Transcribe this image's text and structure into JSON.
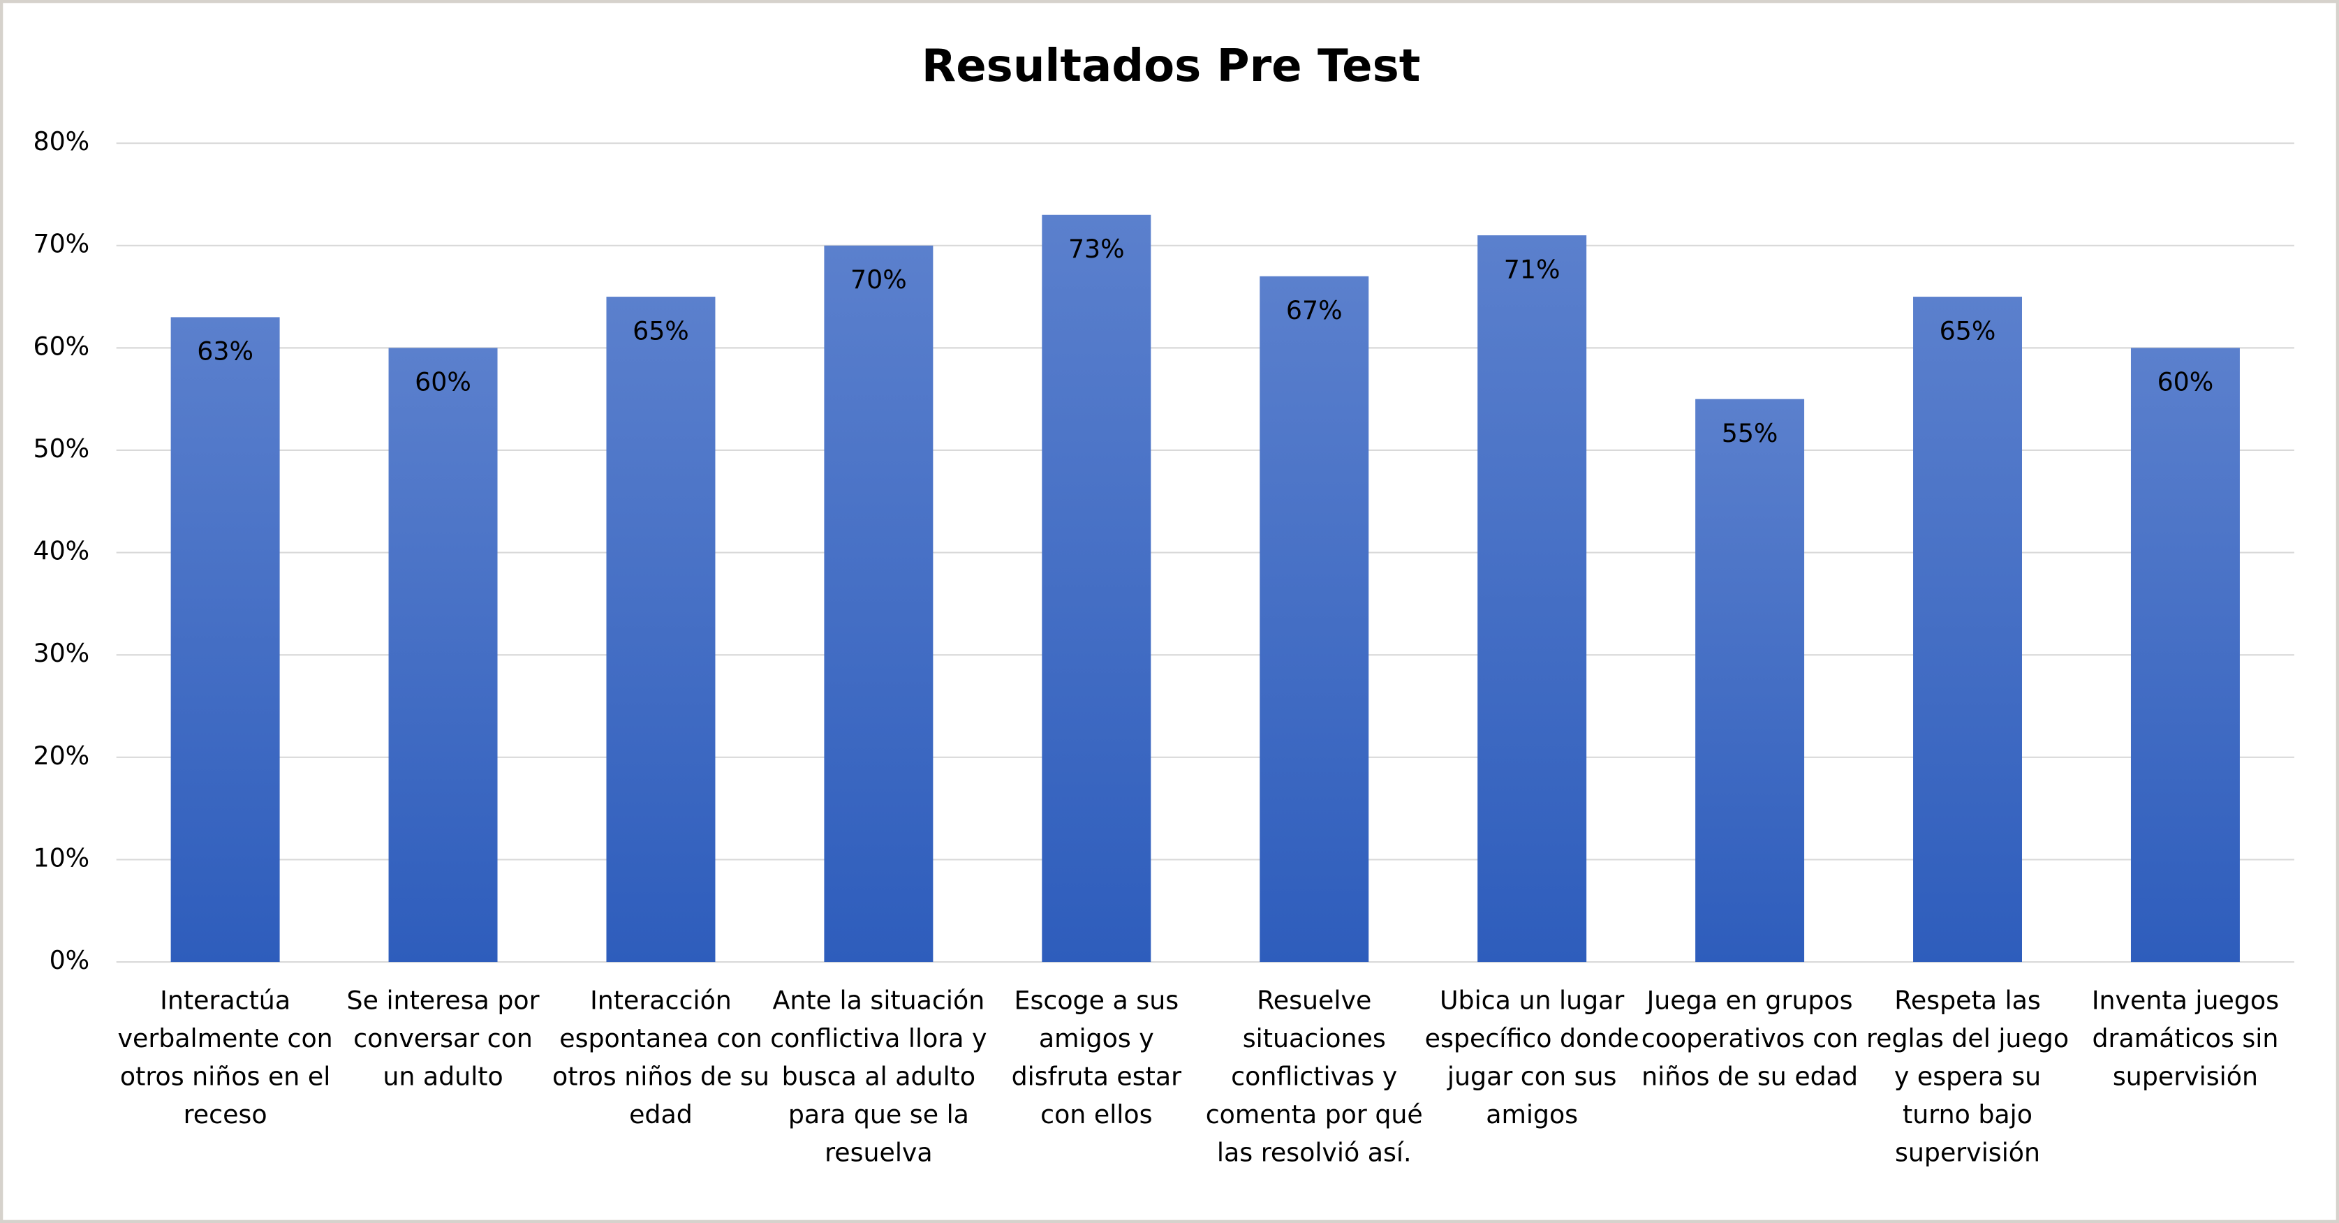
{
  "chart_data": {
    "type": "bar",
    "title": "Resultados Pre Test",
    "categories": [
      "Interactúa verbalmente con otros niños en el receso",
      "Se interesa por conversar con un adulto",
      "Interacción espontanea con otros niños de su edad",
      "Ante la situación conflictiva llora y busca al adulto para que se la resuelva",
      "Escoge a sus amigos y disfruta estar con ellos",
      "Resuelve situaciones conflictivas y comenta por qué las resolvió así.",
      "Ubica un lugar específico donde jugar con sus amigos",
      "Juega en grupos cooperativos con niños de su edad",
      "Respeta las reglas del juego y espera su turno bajo supervisión",
      "Inventa juegos dramáticos sin supervisión"
    ],
    "values": [
      63,
      60,
      65,
      70,
      73,
      67,
      71,
      55,
      65,
      60
    ],
    "value_labels": [
      "63%",
      "60%",
      "65%",
      "70%",
      "73%",
      "67%",
      "71%",
      "55%",
      "65%",
      "60%"
    ],
    "color": "#4472c4",
    "ylim": [
      0,
      80
    ],
    "yticks": [
      {
        "value": 0,
        "label": "0%"
      },
      {
        "value": 10,
        "label": "10%"
      },
      {
        "value": 20,
        "label": "20%"
      },
      {
        "value": 30,
        "label": "30%"
      },
      {
        "value": 40,
        "label": "40%"
      },
      {
        "value": 50,
        "label": "50%"
      },
      {
        "value": 60,
        "label": "60%"
      },
      {
        "value": 70,
        "label": "70%"
      },
      {
        "value": 80,
        "label": "80%"
      }
    ],
    "grid": true
  }
}
